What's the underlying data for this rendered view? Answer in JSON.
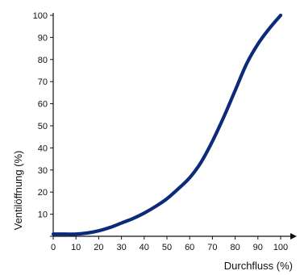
{
  "chart_data": {
    "type": "line",
    "xlabel": "Durchfluss (%)",
    "ylabel": "Ventilöffnung (%)",
    "xlim": [
      0,
      100
    ],
    "ylim": [
      0,
      100
    ],
    "x_ticks": [
      0,
      10,
      20,
      30,
      40,
      50,
      60,
      70,
      80,
      90,
      100
    ],
    "y_ticks": [
      0,
      10,
      20,
      30,
      40,
      50,
      60,
      70,
      80,
      90,
      100
    ],
    "grid": false,
    "legend": "none",
    "series": [
      {
        "x": [
          0,
          5,
          10,
          15,
          20,
          25,
          30,
          35,
          40,
          45,
          50,
          55,
          60,
          65,
          70,
          75,
          80,
          85,
          90,
          95,
          100
        ],
        "values": [
          1,
          1,
          1,
          1.5,
          2.5,
          4,
          6,
          8,
          10.5,
          13.5,
          17,
          21.5,
          26.5,
          33.5,
          43,
          54,
          66,
          78,
          87,
          94,
          100
        ],
        "color": "#0d2a7a"
      }
    ]
  }
}
